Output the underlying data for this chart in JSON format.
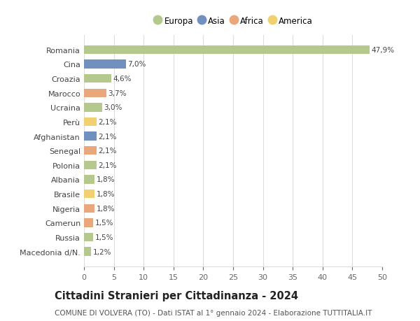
{
  "countries": [
    "Romania",
    "Cina",
    "Croazia",
    "Marocco",
    "Ucraina",
    "Perù",
    "Afghanistan",
    "Senegal",
    "Polonia",
    "Albania",
    "Brasile",
    "Nigeria",
    "Camerun",
    "Russia",
    "Macedonia d/N."
  ],
  "values": [
    47.9,
    7.0,
    4.6,
    3.7,
    3.0,
    2.1,
    2.1,
    2.1,
    2.1,
    1.8,
    1.8,
    1.8,
    1.5,
    1.5,
    1.2
  ],
  "labels": [
    "47,9%",
    "7,0%",
    "4,6%",
    "3,7%",
    "3,0%",
    "2,1%",
    "2,1%",
    "2,1%",
    "2,1%",
    "1,8%",
    "1,8%",
    "1,8%",
    "1,5%",
    "1,5%",
    "1,2%"
  ],
  "continents": [
    "Europa",
    "Asia",
    "Europa",
    "Africa",
    "Europa",
    "America",
    "Asia",
    "Africa",
    "Europa",
    "Europa",
    "America",
    "Africa",
    "Africa",
    "Europa",
    "Europa"
  ],
  "continent_colors": {
    "Europa": "#b5c98e",
    "Asia": "#7090bf",
    "Africa": "#e8a87c",
    "America": "#f0d070"
  },
  "legend_order": [
    "Europa",
    "Asia",
    "Africa",
    "America"
  ],
  "title": "Cittadini Stranieri per Cittadinanza - 2024",
  "subtitle": "COMUNE DI VOLVERA (TO) - Dati ISTAT al 1° gennaio 2024 - Elaborazione TUTTITALIA.IT",
  "xlim": [
    0,
    50
  ],
  "xticks": [
    0,
    5,
    10,
    15,
    20,
    25,
    30,
    35,
    40,
    45,
    50
  ],
  "background_color": "#ffffff",
  "grid_color": "#dddddd",
  "bar_height": 0.6,
  "title_fontsize": 10.5,
  "subtitle_fontsize": 7.5,
  "label_fontsize": 7.5,
  "tick_fontsize": 8,
  "legend_fontsize": 8.5
}
